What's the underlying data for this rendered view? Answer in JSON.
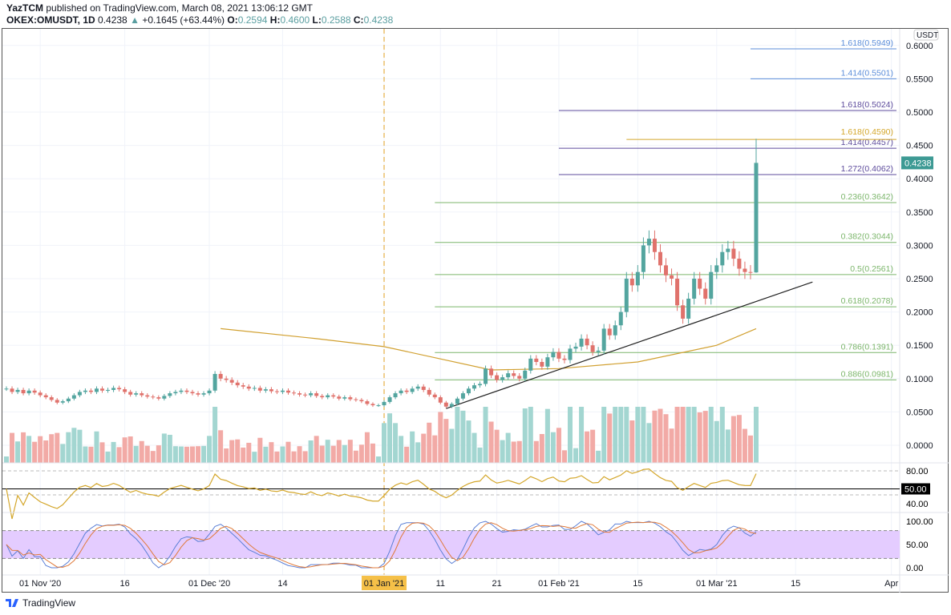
{
  "header": {
    "publisher": "YazTCM",
    "published_text": "published on TradingView.com, March 08, 2021 13:06:12 GMT",
    "symbol": "OKEX:OMUSDT, 1D",
    "last": "0.4238",
    "change": "+0.1645 (+63.44%)",
    "o_label": "O:",
    "o": "0.2594",
    "h_label": "H:",
    "h": "0.4600",
    "l_label": "L:",
    "l": "0.2588",
    "c_label": "C:",
    "c": "0.4238",
    "arrow_icon": "triangle-up-icon"
  },
  "footer": {
    "brand": "TradingView",
    "logo_icon": "tradingview-logo-icon"
  },
  "colors": {
    "up": "#53a59f",
    "down": "#e0726c",
    "vol_up": "#a3d6d1",
    "vol_down": "#f2aaa6",
    "ma": "#d1a030",
    "trend": "#222222",
    "rsi": "#d4a72c",
    "stoch_k": "#5b7fd6",
    "stoch_d": "#e07a3a",
    "stoch_band": "#e4ccff",
    "jan_marker": "#e0a020"
  },
  "chart_data": {
    "type": "candlestick",
    "quote_currency": "USDT",
    "start_date": "2020-10-26",
    "closes": [
      0.085,
      0.08,
      0.083,
      0.078,
      0.082,
      0.079,
      0.075,
      0.072,
      0.068,
      0.064,
      0.066,
      0.07,
      0.075,
      0.08,
      0.082,
      0.08,
      0.085,
      0.082,
      0.083,
      0.086,
      0.084,
      0.08,
      0.076,
      0.078,
      0.075,
      0.073,
      0.072,
      0.07,
      0.074,
      0.078,
      0.08,
      0.082,
      0.08,
      0.078,
      0.076,
      0.078,
      0.082,
      0.107,
      0.1,
      0.098,
      0.094,
      0.09,
      0.088,
      0.085,
      0.086,
      0.082,
      0.084,
      0.081,
      0.08,
      0.082,
      0.079,
      0.078,
      0.076,
      0.075,
      0.078,
      0.074,
      0.072,
      0.075,
      0.073,
      0.07,
      0.072,
      0.069,
      0.068,
      0.066,
      0.062,
      0.06,
      0.06,
      0.065,
      0.072,
      0.078,
      0.082,
      0.08,
      0.085,
      0.088,
      0.083,
      0.076,
      0.072,
      0.064,
      0.058,
      0.062,
      0.07,
      0.078,
      0.085,
      0.09,
      0.092,
      0.115,
      0.105,
      0.098,
      0.102,
      0.108,
      0.104,
      0.1,
      0.112,
      0.13,
      0.125,
      0.118,
      0.132,
      0.14,
      0.13,
      0.128,
      0.145,
      0.148,
      0.16,
      0.15,
      0.14,
      0.142,
      0.175,
      0.165,
      0.18,
      0.2,
      0.25,
      0.24,
      0.26,
      0.3,
      0.31,
      0.29,
      0.27,
      0.255,
      0.25,
      0.21,
      0.19,
      0.22,
      0.25,
      0.235,
      0.22,
      0.26,
      0.27,
      0.29,
      0.295,
      0.28,
      0.265,
      0.26,
      0.2594,
      0.4238
    ],
    "last_candle": {
      "open": 0.2594,
      "high": 0.46,
      "low": 0.2588,
      "close": 0.4238
    },
    "price_axis": {
      "ticks": [
        "0.0000",
        "0.0500",
        "0.1000",
        "0.1500",
        "0.2000",
        "0.2500",
        "0.3000",
        "0.3500",
        "0.4000",
        "0.4500",
        "0.5000",
        "0.5500",
        "0.6000"
      ],
      "range": [
        -0.03,
        0.625
      ]
    },
    "last_price_label": "0.4238",
    "time_axis": [
      {
        "label": "01 Nov '20",
        "date": "2020-11-01"
      },
      {
        "label": "16",
        "date": "2020-11-16"
      },
      {
        "label": "01 Dec '20",
        "date": "2020-12-01"
      },
      {
        "label": "14",
        "date": "2020-12-14"
      },
      {
        "label": "01 Jan '21",
        "date": "2021-01-01",
        "highlight": true
      },
      {
        "label": "11",
        "date": "2021-01-11"
      },
      {
        "label": "21",
        "date": "2021-01-21"
      },
      {
        "label": "01 Feb '21",
        "date": "2021-02-01"
      },
      {
        "label": "15",
        "date": "2021-02-15"
      },
      {
        "label": "01 Mar '21",
        "date": "2021-03-01"
      },
      {
        "label": "15",
        "date": "2021-03-15"
      },
      {
        "label": "Apr",
        "date": "2021-04-01"
      }
    ],
    "fib_levels": [
      {
        "label": "1.618(0.5949)",
        "price": 0.5949,
        "from": "2021-03-07",
        "color": "#5b8dd9"
      },
      {
        "label": "1.414(0.5501)",
        "price": 0.5501,
        "from": "2021-03-07",
        "color": "#5b8dd9"
      },
      {
        "label": "1.618(0.5024)",
        "price": 0.5024,
        "from": "2021-02-01",
        "color": "#5d4b9c"
      },
      {
        "label": "1.618(0.4590)",
        "price": 0.459,
        "from": "2021-02-13",
        "color": "#d4a72c"
      },
      {
        "label": "1.414(0.4457)",
        "price": 0.4457,
        "from": "2021-02-01",
        "color": "#5d4b9c"
      },
      {
        "label": "1.272(0.4062)",
        "price": 0.4062,
        "from": "2021-02-01",
        "color": "#5d4b9c"
      },
      {
        "label": "0.236(0.3642)",
        "price": 0.3642,
        "from": "2021-01-10",
        "color": "#7cb66b"
      },
      {
        "label": "0.382(0.3044)",
        "price": 0.3044,
        "from": "2021-01-10",
        "color": "#7cb66b"
      },
      {
        "label": "0.5(0.2561)",
        "price": 0.2561,
        "from": "2021-01-10",
        "color": "#7cb66b"
      },
      {
        "label": "0.618(0.2078)",
        "price": 0.2078,
        "from": "2021-01-10",
        "color": "#7cb66b"
      },
      {
        "label": "0.786(0.1391)",
        "price": 0.1391,
        "from": "2021-01-10",
        "color": "#7cb66b"
      },
      {
        "label": "0.886(0.0981)",
        "price": 0.0981,
        "from": "2021-01-10",
        "color": "#7cb66b"
      }
    ],
    "moving_average": [
      [
        "2020-12-03",
        0.175
      ],
      [
        "2020-12-20",
        0.16
      ],
      [
        "2021-01-01",
        0.148
      ],
      [
        "2021-01-20",
        0.113
      ],
      [
        "2021-02-01",
        0.115
      ],
      [
        "2021-02-15",
        0.125
      ],
      [
        "2021-03-01",
        0.15
      ],
      [
        "2021-03-08",
        0.175
      ]
    ],
    "trendline": [
      [
        "2021-01-12",
        0.055
      ],
      [
        "2021-03-18",
        0.245
      ]
    ],
    "rsi": {
      "ticks": [
        "80.00",
        "40.00"
      ],
      "level_label": "50.00"
    },
    "stoch": {
      "ticks": [
        "100.00",
        "50.00",
        "0.00"
      ],
      "band": [
        20,
        80
      ]
    }
  }
}
